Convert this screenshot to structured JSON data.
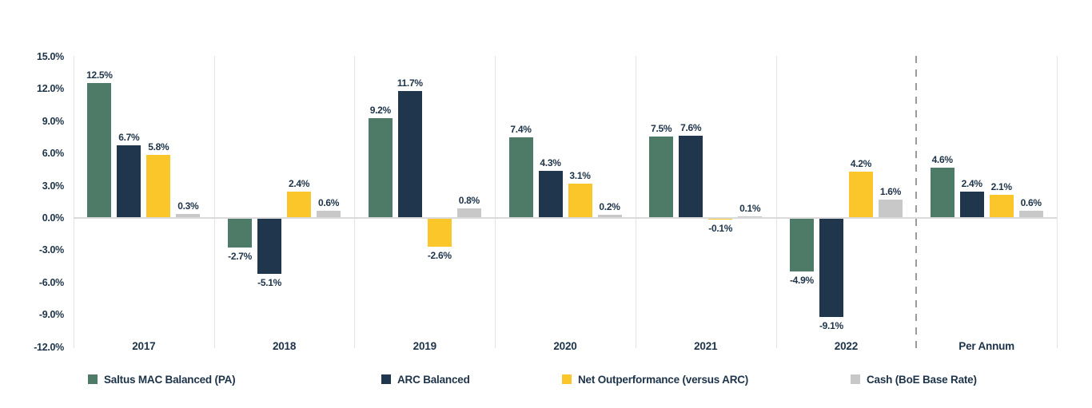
{
  "colors": {
    "green": "#4e7a68",
    "navy": "#1f364d",
    "yellow": "#fac629",
    "gray": "#c8c8c8",
    "text": "#1d3349",
    "separator": "#e4e4e4",
    "zero_line": "#dadada",
    "dashed_separator": "#9b9b9b"
  },
  "chart_data": {
    "type": "bar",
    "title": "",
    "categories": [
      "2017",
      "2018",
      "2019",
      "2020",
      "2021",
      "2022",
      "Per Annum"
    ],
    "series": [
      {
        "name": "Saltus MAC Balanced (PA)",
        "slug": "saltus-mac-balanced",
        "color_key": "green",
        "values": [
          12.5,
          -2.7,
          9.2,
          7.4,
          7.5,
          -4.9,
          4.6
        ]
      },
      {
        "name": "ARC Balanced",
        "slug": "arc-balanced",
        "color_key": "navy",
        "values": [
          6.7,
          -5.1,
          11.7,
          4.3,
          7.6,
          -9.1,
          2.4
        ]
      },
      {
        "name": "Net Outperformance (versus ARC)",
        "slug": "net-outperformance",
        "color_key": "yellow",
        "values": [
          5.8,
          2.4,
          -2.6,
          3.1,
          -0.1,
          4.2,
          2.1
        ]
      },
      {
        "name": "Cash (BoE Base Rate)",
        "slug": "cash-boe-base-rate",
        "color_key": "gray",
        "values": [
          0.3,
          0.6,
          0.8,
          0.2,
          0.1,
          1.6,
          0.6
        ]
      }
    ],
    "y_ticks": [
      "15.0%",
      "12.0%",
      "9.0%",
      "6.0%",
      "3.0%",
      "0.0%",
      "-3.0%",
      "-6.0%",
      "-9.0%",
      "-12.0%"
    ],
    "ylim": [
      -12,
      15
    ],
    "grid": "vertical-panel-separators-only",
    "separator_before_last_category": "dashed",
    "value_labels": "each bar labeled with value to one decimal plus % sign",
    "legend_position": "bottom"
  },
  "legend": {
    "items": [
      {
        "label": "Saltus MAC Balanced (PA)",
        "color_key": "green"
      },
      {
        "label": "ARC Balanced",
        "color_key": "navy"
      },
      {
        "label": "Net Outperformance (versus ARC)",
        "color_key": "yellow"
      },
      {
        "label": "Cash (BoE Base Rate)",
        "color_key": "gray"
      }
    ]
  }
}
